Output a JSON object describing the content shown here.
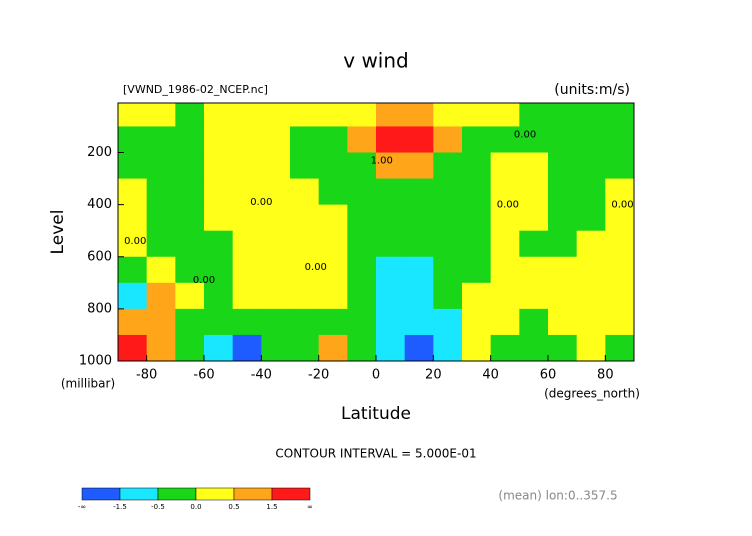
{
  "chart_data": {
    "type": "contour",
    "title": "v wind",
    "subtitle": "[VWND_1986-02_NCEP.nc]",
    "units": "(units:m/s)",
    "y_label": "Level",
    "y_unit": "(millibar)",
    "x_label": "Latitude",
    "x_unit": "(degrees_north)",
    "note": "CONTOUR INTERVAL = 5.000E-01",
    "footer": "(mean) lon:0..357.5",
    "xlim": [
      -90,
      90
    ],
    "ylim": [
      1000,
      10
    ],
    "xticks": [
      -80,
      -60,
      -40,
      -20,
      0,
      20,
      40,
      60,
      80
    ],
    "yticks": [
      200,
      400,
      600,
      800,
      1000
    ],
    "x_edges": [
      -90,
      -80,
      -70,
      -60,
      -50,
      -40,
      -30,
      -20,
      -10,
      0,
      10,
      20,
      30,
      40,
      50,
      60,
      70,
      80,
      90
    ],
    "y_edges": [
      10,
      100,
      200,
      300,
      400,
      500,
      600,
      700,
      800,
      900,
      1000
    ],
    "values": [
      [
        0.2,
        0.2,
        -0.2,
        0.2,
        0.2,
        0.2,
        0.2,
        0.2,
        0.2,
        0.8,
        0.8,
        0.2,
        0.2,
        0.2,
        -0.2,
        -0.2,
        -0.2,
        -0.2
      ],
      [
        -0.2,
        -0.2,
        -0.2,
        0.2,
        0.2,
        0.2,
        -0.2,
        -0.2,
        0.8,
        2.0,
        2.0,
        0.8,
        -0.2,
        -0.2,
        -0.2,
        -0.2,
        -0.2,
        -0.2
      ],
      [
        -0.2,
        -0.2,
        -0.2,
        0.2,
        0.2,
        0.2,
        -0.2,
        -0.2,
        -0.2,
        0.8,
        0.8,
        -0.2,
        -0.2,
        0.2,
        0.2,
        -0.2,
        -0.2,
        -0.2
      ],
      [
        0.2,
        -0.2,
        -0.2,
        0.2,
        0.2,
        0.2,
        0.2,
        -0.2,
        -0.2,
        -0.2,
        -0.2,
        -0.2,
        -0.2,
        0.2,
        0.2,
        -0.2,
        -0.2,
        0.2
      ],
      [
        0.2,
        -0.2,
        -0.2,
        0.2,
        0.2,
        0.2,
        0.2,
        0.2,
        -0.2,
        -0.2,
        -0.2,
        -0.2,
        -0.2,
        0.2,
        0.2,
        -0.2,
        -0.2,
        0.2
      ],
      [
        0.2,
        -0.2,
        -0.2,
        -0.2,
        0.2,
        0.2,
        0.2,
        0.2,
        -0.2,
        -0.2,
        -0.2,
        -0.2,
        -0.2,
        0.2,
        -0.2,
        -0.2,
        0.2,
        0.2
      ],
      [
        -0.2,
        0.2,
        -0.2,
        -0.2,
        0.2,
        0.2,
        0.2,
        0.2,
        -0.2,
        -0.6,
        -0.6,
        -0.2,
        -0.2,
        0.2,
        0.2,
        0.2,
        0.2,
        0.2
      ],
      [
        -0.6,
        0.8,
        0.2,
        -0.2,
        0.2,
        0.2,
        0.2,
        0.2,
        -0.2,
        -0.6,
        -0.6,
        -0.2,
        0.2,
        0.2,
        0.2,
        0.2,
        0.2,
        0.2
      ],
      [
        0.8,
        0.8,
        -0.2,
        -0.2,
        -0.2,
        -0.2,
        -0.2,
        -0.2,
        -0.2,
        -0.6,
        -0.6,
        -0.6,
        0.2,
        0.2,
        -0.2,
        0.2,
        0.2,
        0.2
      ],
      [
        2.0,
        0.8,
        -0.2,
        -0.6,
        -2.0,
        -0.2,
        -0.2,
        0.8,
        -0.2,
        -0.6,
        -2.0,
        -0.6,
        0.2,
        -0.2,
        -0.2,
        -0.2,
        0.2,
        -0.2
      ]
    ],
    "colorbar": {
      "ticks": [
        "-∞",
        -1.5,
        -0.5,
        {
          "value": 0,
          "label": "0.0"
        },
        0.5,
        1.5,
        "∞"
      ],
      "colors": [
        "#1e5cff",
        "#19e6ff",
        "#19d619",
        "#ffff19",
        "#ffa519",
        "#ff1919"
      ]
    },
    "annotations": [
      {
        "text": "0.00",
        "x": 52,
        "y": 130
      },
      {
        "text": "1.00",
        "x": 2,
        "y": 230
      },
      {
        "text": "0.00",
        "x": -40,
        "y": 390
      },
      {
        "text": "0.00",
        "x": -84,
        "y": 540
      },
      {
        "text": "0.00",
        "x": -60,
        "y": 690
      },
      {
        "text": "0.00",
        "x": -21,
        "y": 640
      },
      {
        "text": "0.00",
        "x": 46,
        "y": 400
      },
      {
        "text": "0.00",
        "x": 86,
        "y": 400
      }
    ]
  }
}
